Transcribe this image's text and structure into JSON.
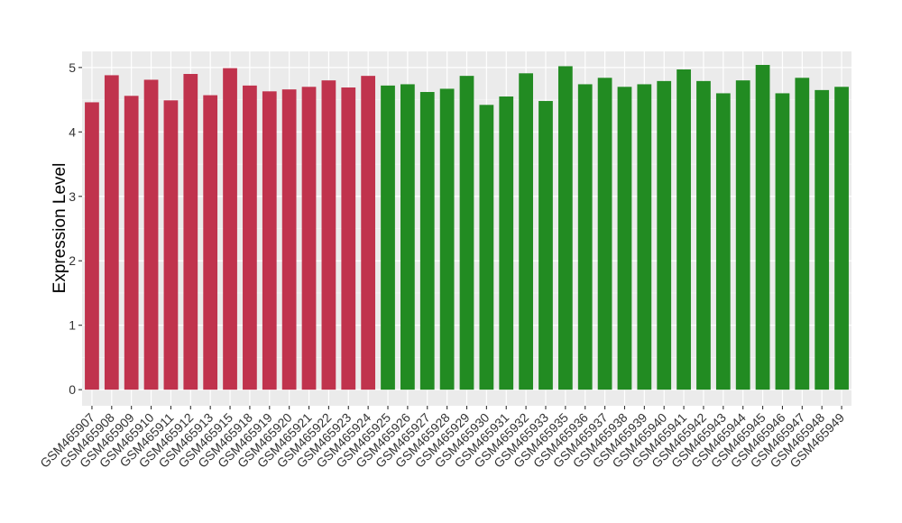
{
  "chart_data": {
    "type": "bar",
    "ylabel": "Expression Level",
    "xlabel": "",
    "ylim": [
      -0.25,
      5.25
    ],
    "yticks": [
      0,
      1,
      2,
      3,
      4,
      5
    ],
    "grid": true,
    "background": "#EBEBEB",
    "colors": {
      "group1": "#C0334D",
      "group2": "#228B22"
    },
    "categories": [
      "GSM465907",
      "GSM465908",
      "GSM465909",
      "GSM465910",
      "GSM465911",
      "GSM465912",
      "GSM465913",
      "GSM465915",
      "GSM465918",
      "GSM465919",
      "GSM465920",
      "GSM465921",
      "GSM465922",
      "GSM465923",
      "GSM465924",
      "GSM465925",
      "GSM465926",
      "GSM465927",
      "GSM465928",
      "GSM465929",
      "GSM465930",
      "GSM465931",
      "GSM465932",
      "GSM465933",
      "GSM465935",
      "GSM465936",
      "GSM465937",
      "GSM465938",
      "GSM465939",
      "GSM465940",
      "GSM465941",
      "GSM465942",
      "GSM465943",
      "GSM465944",
      "GSM465945",
      "GSM465946",
      "GSM465947",
      "GSM465948",
      "GSM465949"
    ],
    "values": [
      4.46,
      4.88,
      4.56,
      4.81,
      4.49,
      4.9,
      4.57,
      4.99,
      4.72,
      4.63,
      4.66,
      4.7,
      4.8,
      4.69,
      4.87,
      4.72,
      4.74,
      4.62,
      4.67,
      4.87,
      4.42,
      4.55,
      4.91,
      4.48,
      5.02,
      4.74,
      4.84,
      4.7,
      4.74,
      4.79,
      4.97,
      4.79,
      4.6,
      4.8,
      5.04,
      4.6,
      4.84,
      4.65,
      4.7
    ],
    "groups": [
      1,
      1,
      1,
      1,
      1,
      1,
      1,
      1,
      1,
      1,
      1,
      1,
      1,
      1,
      1,
      2,
      2,
      2,
      2,
      2,
      2,
      2,
      2,
      2,
      2,
      2,
      2,
      2,
      2,
      2,
      2,
      2,
      2,
      2,
      2,
      2,
      2,
      2,
      2
    ]
  }
}
